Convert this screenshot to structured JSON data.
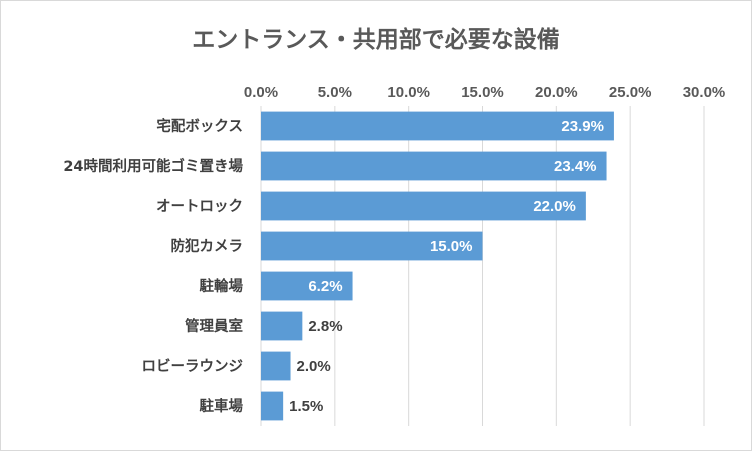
{
  "chart_data": {
    "type": "bar",
    "orientation": "horizontal",
    "title": "エントランス・共用部で必要な設備",
    "categories": [
      "宅配ボックス",
      "24時間利用可能ゴミ置き場",
      "オートロック",
      "防犯カメラ",
      "駐輪場",
      "管理員室",
      "ロビーラウンジ",
      "駐車場"
    ],
    "values": [
      23.9,
      23.4,
      22.0,
      15.0,
      6.2,
      2.8,
      2.0,
      1.5
    ],
    "value_labels": [
      "23.9%",
      "23.4%",
      "22.0%",
      "15.0%",
      "6.2%",
      "2.8%",
      "2.0%",
      "1.5%"
    ],
    "xlim": [
      0,
      30
    ],
    "x_ticks": [
      0,
      5,
      10,
      15,
      20,
      25,
      30
    ],
    "x_tick_labels": [
      "0.0%",
      "5.0%",
      "10.0%",
      "15.0%",
      "20.0%",
      "25.0%",
      "30.0%"
    ],
    "x_axis_position": "top",
    "grid": true,
    "bar_color": "#5b9bd5",
    "xlabel": "",
    "ylabel": ""
  }
}
